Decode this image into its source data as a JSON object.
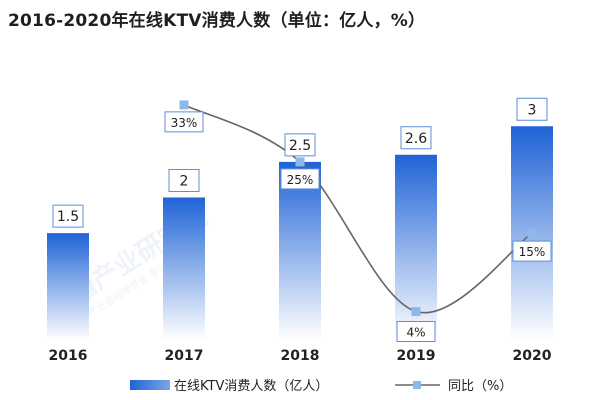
{
  "title": "2016-2020年在线KTV消费人数（单位：亿人，%）",
  "watermark": {
    "logo_text": "前瞻产业研究院",
    "sub_text": "中国产业咨询领导者·专注产业咨询"
  },
  "colors": {
    "bar_top": "#1f63d6",
    "bar_bottom": "#ffffff",
    "line": "#666666",
    "marker": "#8fb8e8",
    "label_border": "#5b8fd6"
  },
  "chart_data": {
    "type": "bar",
    "categories": [
      "2016",
      "2017",
      "2018",
      "2019",
      "2020"
    ],
    "series": [
      {
        "name": "在线KTV消费人数（亿人）",
        "type": "bar",
        "axis": "left",
        "values": [
          1.5,
          2,
          2.5,
          2.6,
          3
        ],
        "labels": [
          "1.5",
          "2",
          "2.5",
          "2.6",
          "3"
        ]
      },
      {
        "name": "同比（%）",
        "type": "line",
        "axis": "right",
        "values": [
          null,
          33,
          25,
          4,
          15
        ],
        "labels": [
          "",
          "33%",
          "25%",
          "4%",
          "15%"
        ]
      }
    ],
    "ylim_left": [
      0,
      4
    ],
    "ylim_right": [
      0,
      40
    ],
    "grid": false,
    "legend_position": "bottom"
  }
}
